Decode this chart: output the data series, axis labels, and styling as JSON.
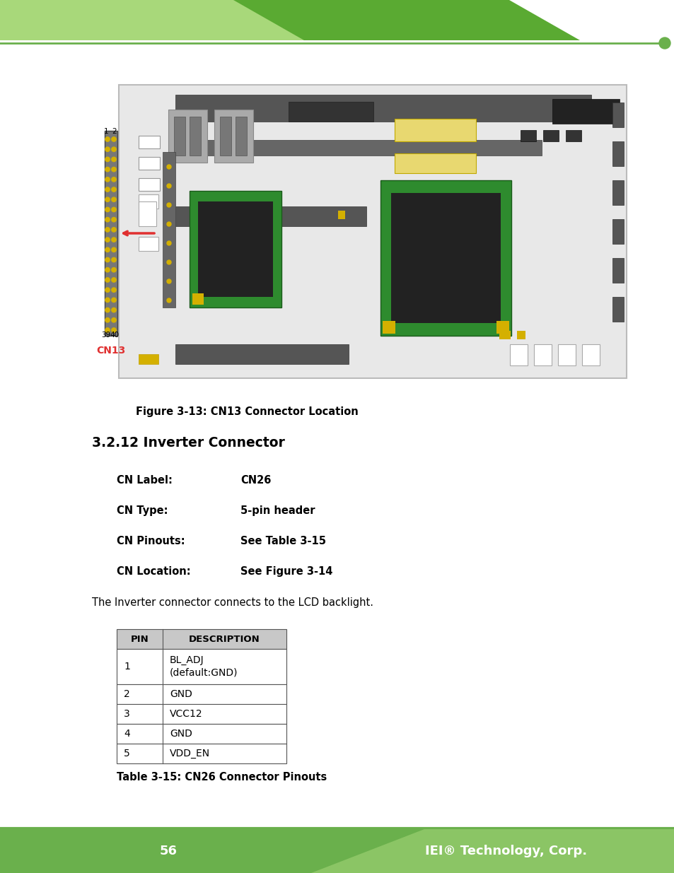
{
  "page_number": "56",
  "company": "IEI® Technology, Corp.",
  "figure_caption": "Figure 3-13: CN13 Connector Location",
  "section_title": "3.2.12 Inverter Connector",
  "cn_label_key": "CN Label:",
  "cn_label_val": "CN26",
  "cn_type_key": "CN Type:",
  "cn_type_val": "5-pin header",
  "cn_pinouts_key": "CN Pinouts:",
  "cn_pinouts_val": "See Table 3-15",
  "cn_location_key": "CN Location:",
  "cn_location_val": "See Figure 3-14",
  "body_text": "The Inverter connector connects to the LCD backlight.",
  "table_caption": "Table 3-15: CN26 Connector Pinouts",
  "table_headers": [
    "PIN",
    "DESCRIPTION"
  ],
  "table_rows": [
    [
      "1",
      "BL_ADJ\n(default:GND)"
    ],
    [
      "2",
      "GND"
    ],
    [
      "3",
      "VCC12"
    ],
    [
      "4",
      "GND"
    ],
    [
      "5",
      "VDD_EN"
    ]
  ],
  "top_bar_light": "#a8d87a",
  "top_bar_dark": "#5aaa32",
  "header_line_color": "#6ab04c",
  "light_green": "#8cc857",
  "footer_bg": "#6ab04c",
  "cn13_color": "#e03030",
  "arrow_color": "#e03030",
  "dot_color": "#d4b000",
  "board_bg": "#e8e8e8",
  "board_border": "#bbbbbb",
  "board_dark": "#555555",
  "pcb_green": "#2e8b2e",
  "pcb_dark": "#1a5a1a",
  "pcb_black": "#222222",
  "pcb_yellow": "#d4b000",
  "pcb_gray": "#888888",
  "pcb_lightgray": "#cccccc",
  "connector_gray": "#666666",
  "connector_dark": "#444444"
}
